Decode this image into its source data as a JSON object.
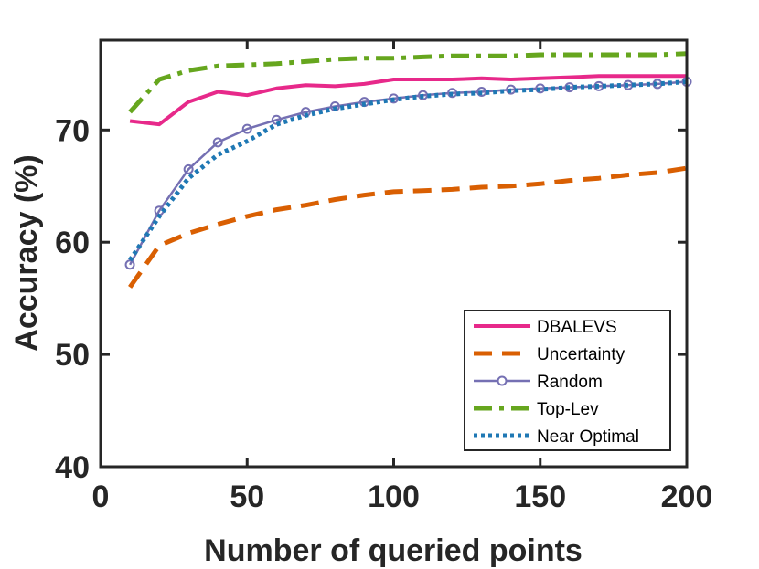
{
  "chart_data": {
    "type": "line",
    "title": "",
    "xlabel": "Number of queried points",
    "ylabel": "Accuracy (%)",
    "xlim": [
      0,
      200
    ],
    "ylim": [
      40,
      78
    ],
    "xticks": [
      0,
      50,
      100,
      150,
      200
    ],
    "yticks": [
      40,
      50,
      60,
      70
    ],
    "grid": false,
    "legend_position": "bottom-right",
    "series": [
      {
        "name": "DBALEVS",
        "color": "#e7298a",
        "style": "solid",
        "marker": "none",
        "x": [
          10,
          20,
          30,
          40,
          50,
          60,
          70,
          80,
          90,
          100,
          110,
          120,
          130,
          140,
          150,
          160,
          170,
          180,
          190,
          200
        ],
        "y": [
          70.8,
          70.5,
          72.5,
          73.4,
          73.1,
          73.7,
          74.0,
          73.9,
          74.1,
          74.5,
          74.5,
          74.5,
          74.6,
          74.5,
          74.6,
          74.7,
          74.8,
          74.8,
          74.8,
          74.8
        ]
      },
      {
        "name": "Uncertainty",
        "color": "#d95f02",
        "style": "dashed",
        "marker": "none",
        "x": [
          10,
          20,
          30,
          40,
          50,
          60,
          70,
          80,
          90,
          100,
          110,
          120,
          130,
          140,
          150,
          160,
          170,
          180,
          190,
          200
        ],
        "y": [
          56.0,
          59.7,
          60.8,
          61.6,
          62.3,
          62.9,
          63.3,
          63.8,
          64.2,
          64.5,
          64.6,
          64.7,
          64.9,
          65.0,
          65.2,
          65.5,
          65.7,
          66.0,
          66.2,
          66.6
        ]
      },
      {
        "name": "Random",
        "color": "#7570b3",
        "style": "solid",
        "marker": "circle",
        "x": [
          10,
          20,
          30,
          40,
          50,
          60,
          70,
          80,
          90,
          100,
          110,
          120,
          130,
          140,
          150,
          160,
          170,
          180,
          190,
          200
        ],
        "y": [
          58.0,
          62.8,
          66.5,
          68.9,
          70.1,
          70.9,
          71.6,
          72.1,
          72.5,
          72.8,
          73.1,
          73.3,
          73.4,
          73.6,
          73.7,
          73.8,
          73.9,
          74.0,
          74.1,
          74.3
        ]
      },
      {
        "name": "Top-Lev",
        "color": "#66a61e",
        "style": "dashdot",
        "marker": "none",
        "x": [
          10,
          20,
          30,
          40,
          50,
          60,
          70,
          80,
          90,
          100,
          110,
          120,
          130,
          140,
          150,
          160,
          170,
          180,
          190,
          200
        ],
        "y": [
          71.6,
          74.5,
          75.3,
          75.7,
          75.8,
          75.9,
          76.1,
          76.3,
          76.4,
          76.4,
          76.5,
          76.6,
          76.6,
          76.6,
          76.7,
          76.7,
          76.7,
          76.7,
          76.7,
          76.8
        ]
      },
      {
        "name": "Near Optimal",
        "color": "#1f78b4",
        "style": "dotted",
        "marker": "none",
        "x": [
          10,
          20,
          30,
          40,
          50,
          60,
          70,
          80,
          90,
          100,
          110,
          120,
          130,
          140,
          150,
          160,
          170,
          180,
          190,
          200
        ],
        "y": [
          58.4,
          62.3,
          65.7,
          67.8,
          69.0,
          70.5,
          71.3,
          71.9,
          72.3,
          72.7,
          73.0,
          73.2,
          73.3,
          73.5,
          73.6,
          73.8,
          73.9,
          74.0,
          74.1,
          74.3
        ]
      }
    ]
  }
}
